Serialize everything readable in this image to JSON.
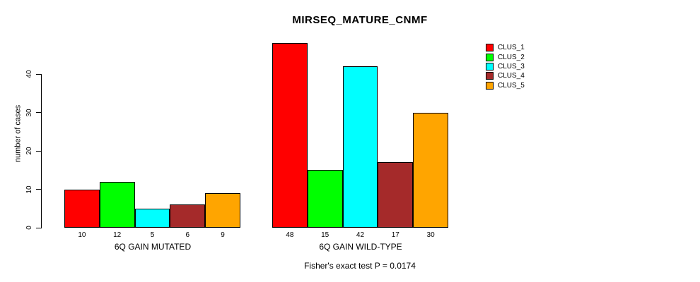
{
  "title": "MIRSEQ_MATURE_CNMF",
  "footer": "Fisher's exact test P = 0.0174",
  "y_axis": {
    "label": "number of cases",
    "ticks": [
      0,
      10,
      20,
      30,
      40
    ]
  },
  "legend": [
    {
      "label": "CLUS_1",
      "color": "#FF0000"
    },
    {
      "label": "CLUS_2",
      "color": "#00FF00"
    },
    {
      "label": "CLUS_3",
      "color": "#00FFFF"
    },
    {
      "label": "CLUS_4",
      "color": "#A52A2A"
    },
    {
      "label": "CLUS_5",
      "color": "#FFA500"
    }
  ],
  "chart_data": {
    "type": "bar",
    "title": "MIRSEQ_MATURE_CNMF",
    "ylabel": "number of cases",
    "ylim": [
      0,
      48
    ],
    "grid": false,
    "legend_position": "top-right",
    "categories": [
      "6Q GAIN MUTATED",
      "6Q GAIN WILD-TYPE"
    ],
    "series": [
      {
        "name": "CLUS_1",
        "color": "#FF0000",
        "values": [
          10,
          48
        ]
      },
      {
        "name": "CLUS_2",
        "color": "#00FF00",
        "values": [
          12,
          15
        ]
      },
      {
        "name": "CLUS_3",
        "color": "#00FFFF",
        "values": [
          5,
          42
        ]
      },
      {
        "name": "CLUS_4",
        "color": "#A52A2A",
        "values": [
          6,
          17
        ]
      },
      {
        "name": "CLUS_5",
        "color": "#FFA500",
        "values": [
          9,
          30
        ]
      }
    ],
    "bar_value_labels": [
      [
        10,
        12,
        5,
        6,
        9
      ],
      [
        48,
        15,
        42,
        17,
        30
      ]
    ],
    "annotation": "Fisher's exact test P = 0.0174"
  }
}
